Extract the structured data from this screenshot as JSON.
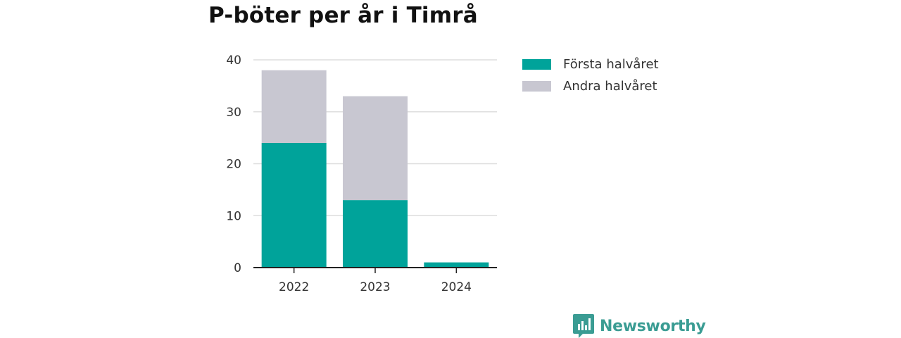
{
  "chart_data": {
    "type": "bar",
    "stacked": true,
    "title": "P-böter per år i Timrå",
    "xlabel": "",
    "ylabel": "",
    "categories": [
      "2022",
      "2023",
      "2024"
    ],
    "series": [
      {
        "name": "Första halvåret",
        "values": [
          24,
          13,
          1
        ],
        "color": "#00a39a"
      },
      {
        "name": "Andra halvåret",
        "values": [
          14,
          20,
          0
        ],
        "color": "#c8c7d1"
      }
    ],
    "ylim": [
      0,
      40
    ],
    "yticks": [
      0,
      10,
      20,
      30,
      40
    ],
    "grid": true,
    "legend_position": "right"
  },
  "brand": {
    "name": "Newsworthy",
    "color": "#3a9c93",
    "icon": "newsworthy-logo-icon"
  }
}
